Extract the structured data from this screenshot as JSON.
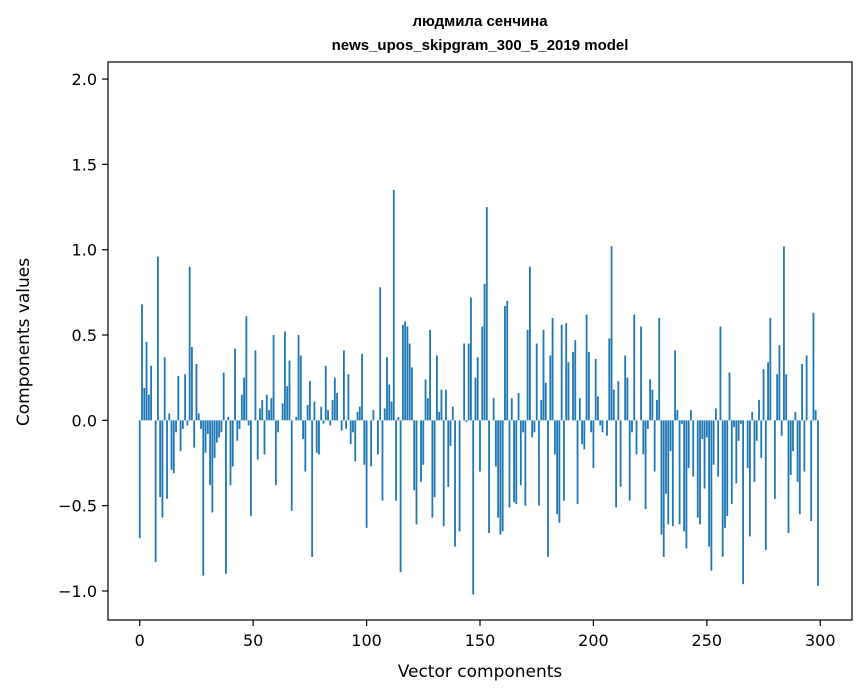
{
  "chart_data": {
    "type": "bar",
    "title": "людмила сенчина",
    "subtitle": "news_upos_skipgram_300_5_2019 model",
    "xlabel": "Vector components",
    "ylabel": "Components values",
    "xlim": [
      -14,
      314
    ],
    "ylim": [
      -1.17,
      2.1
    ],
    "xticks": [
      0,
      50,
      100,
      150,
      200,
      250,
      300
    ],
    "yticks": [
      -1.0,
      -0.5,
      0.0,
      0.5,
      1.0,
      1.5,
      2.0
    ],
    "ytick_labels": [
      "−1.0",
      "−0.5",
      "0.0",
      "0.5",
      "1.0",
      "1.5",
      "2.0"
    ],
    "grid": false,
    "legend": "none",
    "bar_color": "#1f77b4",
    "x": "0..299",
    "values": [
      -0.69,
      0.68,
      0.19,
      0.46,
      0.15,
      0.32,
      0.0,
      -0.83,
      0.96,
      -0.45,
      -0.57,
      0.37,
      -0.46,
      0.04,
      -0.29,
      -0.31,
      -0.07,
      0.26,
      -0.18,
      -0.05,
      0.27,
      -0.03,
      0.9,
      0.43,
      -0.16,
      0.33,
      0.04,
      -0.05,
      -0.91,
      -0.19,
      -0.08,
      -0.38,
      -0.54,
      -0.22,
      -0.13,
      -0.1,
      -0.07,
      0.28,
      -0.9,
      0.02,
      -0.38,
      -0.27,
      0.42,
      -0.12,
      -0.05,
      0.15,
      0.25,
      0.61,
      -0.03,
      -0.56,
      0.0,
      0.41,
      -0.23,
      0.07,
      0.12,
      -0.2,
      0.15,
      0.06,
      0.13,
      0.5,
      -0.38,
      -0.07,
      0.0,
      0.1,
      0.52,
      0.2,
      0.35,
      -0.53,
      0.0,
      0.02,
      0.5,
      0.38,
      -0.11,
      -0.3,
      0.09,
      0.23,
      -0.8,
      0.11,
      -0.19,
      -0.2,
      0.08,
      -0.02,
      0.32,
      0.06,
      -0.03,
      0.12,
      0.25,
      0.16,
      0.0,
      -0.06,
      0.41,
      -0.05,
      0.27,
      -0.14,
      -0.07,
      -0.24,
      0.05,
      0.08,
      0.39,
      -0.26,
      -0.63,
      0.0,
      -0.27,
      0.06,
      0.0,
      -0.2,
      0.78,
      -0.47,
      0.07,
      0.37,
      0.21,
      0.11,
      1.35,
      -0.47,
      0.02,
      -0.89,
      0.56,
      0.58,
      0.55,
      0.45,
      0.31,
      -0.41,
      -0.61,
      0.0,
      -0.36,
      -0.26,
      0.24,
      0.13,
      0.53,
      -0.57,
      -0.45,
      0.38,
      0.05,
      0.18,
      -0.62,
      0.18,
      -0.39,
      -0.15,
      0.08,
      -0.74,
      0.0,
      -0.65,
      0.0,
      0.45,
      -0.01,
      0.45,
      0.72,
      -1.02,
      0.25,
      0.37,
      -0.3,
      0.55,
      0.8,
      1.25,
      -0.66,
      0.0,
      0.13,
      -0.27,
      -0.57,
      -0.67,
      -0.65,
      0.67,
      0.7,
      -0.51,
      0.13,
      -0.48,
      -0.49,
      0.16,
      -0.38,
      -0.07,
      -0.5,
      0.53,
      0.9,
      -0.1,
      -0.07,
      0.45,
      -0.5,
      0.12,
      0.53,
      0.22,
      -0.8,
      0.38,
      0.6,
      -0.2,
      -0.55,
      -0.6,
      0.56,
      -0.47,
      0.57,
      0.34,
      0.0,
      0.4,
      0.47,
      -0.49,
      0.13,
      -0.14,
      -0.17,
      0.62,
      0.4,
      -0.07,
      -0.28,
      0.36,
      0.14,
      -0.03,
      -0.07,
      0.0,
      -0.09,
      0.48,
      1.02,
      0.18,
      -0.51,
      0.23,
      -0.39,
      0.0,
      0.38,
      0.25,
      -0.47,
      -0.07,
      0.62,
      -0.2,
      0.0,
      0.55,
      -0.2,
      -0.52,
      -0.05,
      0.24,
      0.18,
      -0.3,
      0.12,
      0.6,
      -0.67,
      -0.8,
      -0.43,
      -0.61,
      -0.18,
      -0.62,
      0.41,
      0.06,
      -0.61,
      -0.02,
      -0.65,
      -0.75,
      -0.28,
      0.06,
      -0.33,
      0.0,
      -0.57,
      -0.61,
      -0.11,
      -0.4,
      -0.1,
      -0.74,
      -0.88,
      -0.26,
      0.07,
      -0.33,
      0.55,
      -0.8,
      -0.63,
      -0.56,
      0.28,
      -0.49,
      -0.04,
      -0.37,
      -0.12,
      -0.02,
      -0.96,
      0.0,
      -0.28,
      -0.68,
      0.05,
      -0.36,
      -0.12,
      0.12,
      -0.22,
      0.3,
      -0.76,
      0.34,
      0.6,
      0.0,
      -0.46,
      0.27,
      0.44,
      -0.09,
      1.02,
      0.27,
      -0.66,
      -0.32,
      -0.18,
      0.05,
      -0.36,
      -0.55,
      0.33,
      -0.3,
      0.38,
      0.0,
      -0.59,
      0.63,
      0.06,
      -0.97
    ]
  }
}
